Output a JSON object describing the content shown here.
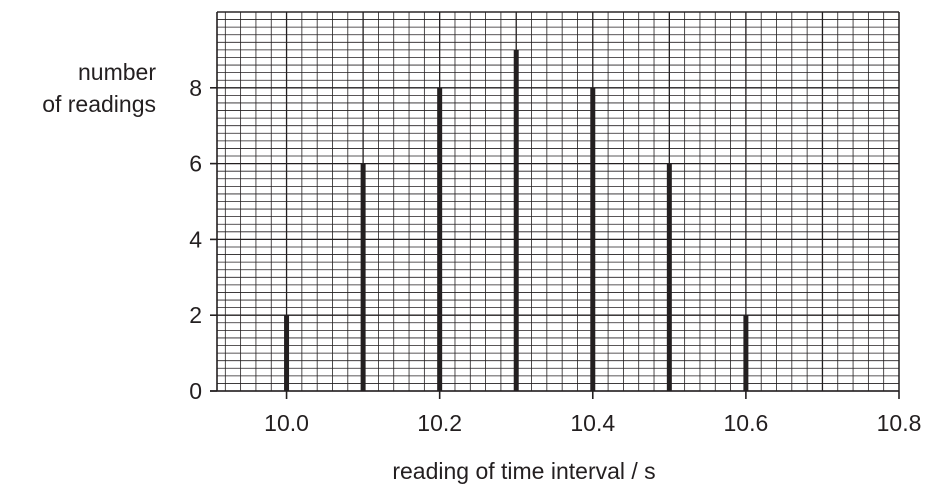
{
  "chart_data": {
    "type": "bar",
    "x": [
      10.0,
      10.1,
      10.2,
      10.3,
      10.4,
      10.5,
      10.6
    ],
    "values": [
      2,
      6,
      8,
      9,
      8,
      6,
      2
    ],
    "ylabel_lines": [
      "number",
      "of readings"
    ],
    "xlabel": "reading of time interval / s",
    "xlim": [
      9.9,
      10.8
    ],
    "ylim": [
      0,
      10
    ],
    "xticks": [
      10.0,
      10.2,
      10.4,
      10.6,
      10.8
    ],
    "xtick_labels": [
      "10.0",
      "10.2",
      "10.4",
      "10.6",
      "10.8"
    ],
    "yticks": [
      0,
      2,
      4,
      6,
      8
    ],
    "ytick_labels": [
      "0",
      "2",
      "4",
      "6",
      "8"
    ],
    "grid": true
  }
}
